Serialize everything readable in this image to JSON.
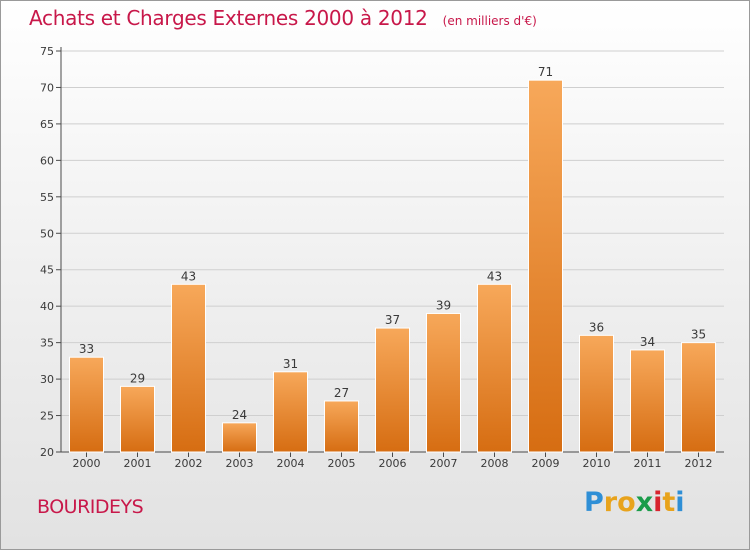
{
  "header": {
    "title": "Achats et Charges Externes 2000 à 2012",
    "subtitle": "(en milliers d'€)"
  },
  "footer": {
    "commune": "BOURIDEYS",
    "logo_text": "Proxiti",
    "logo_colors": [
      "#2f8fd6",
      "#e8a31c",
      "#e8a31c",
      "#1a9c4a",
      "#d8242f",
      "#e8a31c",
      "#2f8fd6"
    ]
  },
  "colors": {
    "bar_light": "#f7a85a",
    "bar_dark": "#d66d12",
    "title": "#c8184a",
    "axis": "#4a4a4a",
    "grid": "#cfcfcf"
  },
  "chart_data": {
    "type": "bar",
    "title": "Achats et Charges Externes 2000 à 2012",
    "subtitle": "(en milliers d'€)",
    "categories": [
      "2000",
      "2001",
      "2002",
      "2003",
      "2004",
      "2005",
      "2006",
      "2007",
      "2008",
      "2009",
      "2010",
      "2011",
      "2012"
    ],
    "values": [
      33,
      29,
      43,
      24,
      31,
      27,
      37,
      39,
      43,
      71,
      36,
      34,
      35
    ],
    "ylim": [
      20,
      75
    ],
    "yticks": [
      20,
      25,
      30,
      35,
      40,
      45,
      50,
      55,
      60,
      65,
      70,
      75
    ],
    "xlabel": "",
    "ylabel": "",
    "grid": true,
    "data_labels": true
  }
}
